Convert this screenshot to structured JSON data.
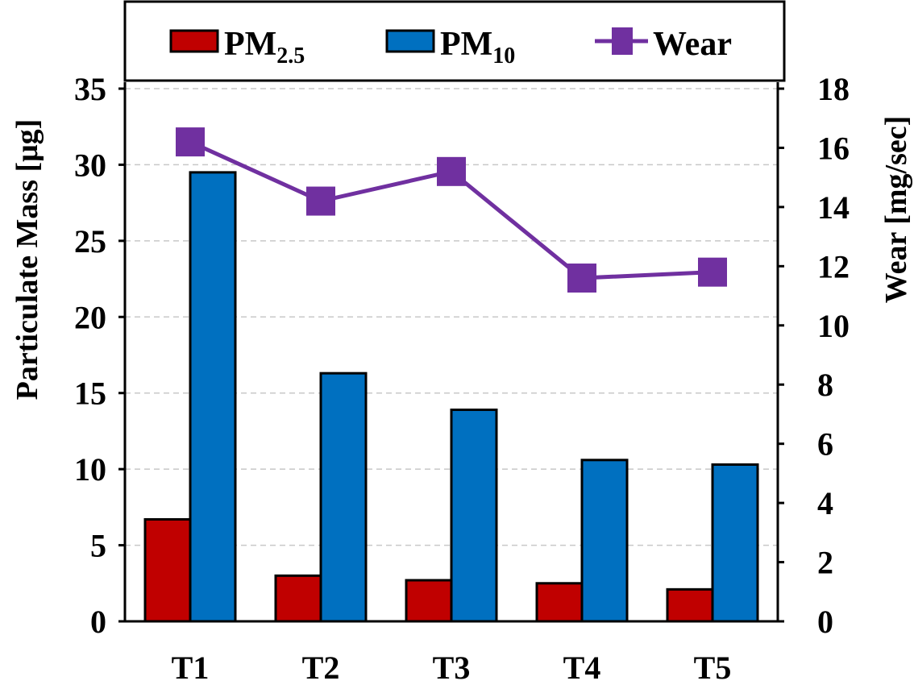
{
  "chart_data": {
    "type": "bar",
    "categories": [
      "T1",
      "T2",
      "T3",
      "T4",
      "T5"
    ],
    "series": [
      {
        "name": "PM2.5",
        "kind": "bar",
        "axis": "left",
        "color": "#c00000",
        "values": [
          6.7,
          3.0,
          2.7,
          2.5,
          2.1
        ]
      },
      {
        "name": "PM10",
        "kind": "bar",
        "axis": "left",
        "color": "#0070c0",
        "values": [
          29.5,
          16.3,
          13.9,
          10.6,
          10.3
        ]
      },
      {
        "name": "Wear",
        "kind": "line",
        "axis": "right",
        "color": "#7030a0",
        "marker": "square",
        "values": [
          16.2,
          14.2,
          15.2,
          11.6,
          11.8
        ]
      }
    ],
    "legend": {
      "position": "top",
      "items": [
        {
          "main": "PM",
          "sub": "2.5"
        },
        {
          "main": "PM",
          "sub": "10"
        },
        {
          "main": "Wear",
          "sub": ""
        }
      ]
    },
    "ylabel": "Particulate Mass [μg]",
    "ylabel_right": "Wear [mg/sec]",
    "ylim": [
      0,
      35
    ],
    "yticks": [
      "0",
      "5",
      "10",
      "15",
      "20",
      "25",
      "30",
      "35"
    ],
    "ylim_right": [
      0,
      18
    ],
    "yticks_right": [
      "0",
      "2",
      "4",
      "6",
      "8",
      "10",
      "12",
      "14",
      "16",
      "18"
    ],
    "grid": true
  }
}
